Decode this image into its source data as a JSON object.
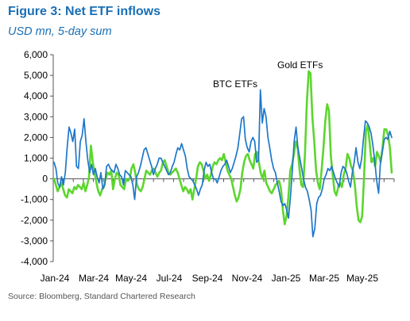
{
  "title": "Figure 3: Net ETF inflows",
  "subtitle": "USD mn, 5-day sum",
  "source": "Source: Bloomberg, Standard Chartered Research",
  "chart_data": {
    "type": "line",
    "title": "Figure 3: Net ETF inflows",
    "subtitle": "USD mn, 5-day sum",
    "xlabel": "",
    "ylabel": "",
    "ylim": [
      -4000,
      6000
    ],
    "yticks": [
      6000,
      5000,
      4000,
      3000,
      2000,
      1000,
      0,
      -1000,
      -2000,
      -3000,
      -4000
    ],
    "ytick_labels": [
      "6,000",
      "5,000",
      "4,000",
      "3,000",
      "2,000",
      "1,000",
      "0",
      "-1,000",
      "-2,000",
      "-3,000",
      "-4,000"
    ],
    "xlim": [
      "2024-01-01",
      "2025-06-30"
    ],
    "xticks": [
      "Jan-24",
      "Mar-24",
      "May-24",
      "Jul-24",
      "Sep-24",
      "Nov-24",
      "Jan-25",
      "Mar-25",
      "May-25"
    ],
    "grid": false,
    "legend": "none",
    "annotations": [
      {
        "text": "Gold ETFs",
        "series": "Gold ETFs"
      },
      {
        "text": "BTC ETFs",
        "series": "BTC ETFs"
      }
    ],
    "series": [
      {
        "name": "BTC ETFs",
        "color": "#1f77c9",
        "values": [
          800,
          500,
          -200,
          -400,
          100,
          -300,
          300,
          1500,
          2500,
          2200,
          1800,
          2400,
          600,
          500,
          1800,
          2100,
          2900,
          1800,
          900,
          300,
          700,
          200,
          500,
          100,
          -200,
          300,
          -500,
          -300,
          600,
          700,
          500,
          400,
          300,
          700,
          500,
          200,
          100,
          -300,
          400,
          300,
          200,
          100,
          -300,
          -1000,
          100,
          300,
          600,
          1000,
          1400,
          1500,
          1200,
          900,
          600,
          200,
          500,
          700,
          1000,
          1000,
          800,
          600,
          400,
          200,
          300,
          600,
          800,
          1200,
          1500,
          1400,
          1700,
          1400,
          1100,
          500,
          100,
          0,
          -100,
          -300,
          -500,
          -800,
          -500,
          -300,
          400,
          800,
          600,
          700,
          300,
          0,
          0,
          -200,
          100,
          400,
          600,
          700,
          900,
          600,
          300,
          500,
          800,
          1100,
          1500,
          2200,
          2900,
          3000,
          1900,
          1500,
          1300,
          1800,
          2000,
          1800,
          800,
          900,
          4300,
          2700,
          3400,
          3000,
          2000,
          1500,
          900,
          500,
          300,
          -200,
          -600,
          -1100,
          -1300,
          -1200,
          -1500,
          -1900,
          -900,
          400,
          1800,
          2500,
          1500,
          1000,
          500,
          0,
          -400,
          -600,
          -1000,
          -1500,
          -2800,
          -2400,
          -1200,
          -900,
          -800,
          -500,
          0,
          200,
          500,
          400,
          600,
          300,
          0,
          -200,
          -400,
          300,
          600,
          500,
          300,
          -100,
          -400,
          300,
          800,
          1500,
          800,
          500,
          1000,
          2000,
          2800,
          2700,
          2500,
          2200,
          1600,
          800,
          -100,
          -700,
          800,
          1300,
          1900,
          2000,
          1900,
          2300,
          2000
        ]
      },
      {
        "name": "Gold ETFs",
        "color": "#5cd62e",
        "values": [
          0,
          -300,
          -600,
          -400,
          -200,
          -500,
          -800,
          -900,
          -500,
          -600,
          -700,
          -400,
          -500,
          -300,
          -400,
          -500,
          -200,
          -600,
          -300,
          100,
          1600,
          800,
          300,
          -200,
          -600,
          -800,
          -500,
          -400,
          0,
          300,
          200,
          400,
          -500,
          0,
          300,
          200,
          -300,
          -400,
          -500,
          0,
          -100,
          0,
          500,
          700,
          300,
          -300,
          -500,
          -600,
          -400,
          0,
          400,
          300,
          200,
          400,
          500,
          300,
          100,
          300,
          400,
          800,
          900,
          600,
          300,
          200,
          300,
          400,
          500,
          300,
          0,
          -300,
          -600,
          -400,
          -500,
          -700,
          -500,
          -1000,
          -500,
          0,
          600,
          800,
          700,
          400,
          0,
          200,
          -100,
          200,
          600,
          800,
          700,
          900,
          1000,
          900,
          1200,
          800,
          400,
          200,
          0,
          -400,
          -800,
          -1100,
          -900,
          -500,
          300,
          800,
          1100,
          1200,
          900,
          700,
          500,
          1200,
          1300,
          800,
          300,
          0,
          400,
          -200,
          -400,
          -600,
          -700,
          -500,
          -300,
          -200,
          -100,
          -500,
          -1500,
          -2200,
          -1800,
          -900,
          400,
          700,
          1200,
          1800,
          1500,
          500,
          -300,
          -400,
          1200,
          3700,
          5200,
          5100,
          3000,
          1800,
          400,
          -200,
          -500,
          400,
          1500,
          2800,
          3600,
          3300,
          1100,
          200,
          -600,
          -800,
          -400,
          -200,
          -400,
          200,
          500,
          1200,
          1000,
          600,
          400,
          -300,
          -1300,
          -2000,
          -2100,
          -1800,
          100,
          2300,
          2600,
          1800,
          800,
          1000,
          600,
          1300,
          1100,
          800,
          1500,
          2400,
          2400,
          2100,
          1500,
          300
        ]
      }
    ]
  }
}
